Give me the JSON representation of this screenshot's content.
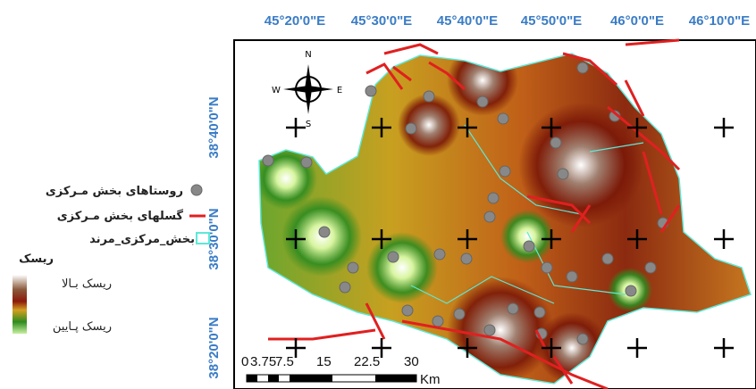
{
  "map": {
    "top_labels": [
      "45°20'0\"E",
      "45°30'0\"E",
      "45°40'0\"E",
      "45°50'0\"E",
      "46°0'0\"E",
      "46°10'0\"E"
    ],
    "left_labels": [
      "38°40'0\"N",
      "38°30'0\"N",
      "38°20'0\"N"
    ],
    "compass": {
      "n": "N",
      "s": "S",
      "e": "E",
      "w": "W"
    },
    "legend": {
      "villages": "روستاهای بخش مـرکزی",
      "faults": "گسلهای بخش مـرکزی",
      "boundary": "بخش_مرکزی_مرند",
      "risk_title": "ریسک",
      "high": "ریسک بـالا",
      "low": "ریسک پـایین"
    },
    "scale": {
      "labels": [
        "0",
        "3.75",
        "7.5",
        "15",
        "22.5",
        "30"
      ],
      "unit": "Km"
    }
  }
}
